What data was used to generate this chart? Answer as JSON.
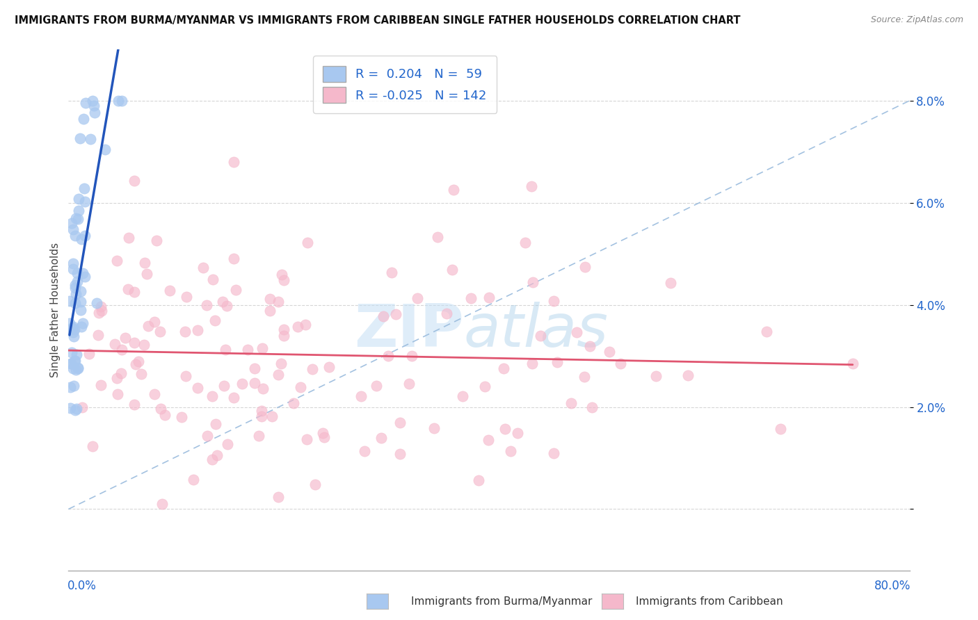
{
  "title": "IMMIGRANTS FROM BURMA/MYANMAR VS IMMIGRANTS FROM CARIBBEAN SINGLE FATHER HOUSEHOLDS CORRELATION CHART",
  "source": "Source: ZipAtlas.com",
  "ylabel": "Single Father Households",
  "xmin": 0.0,
  "xmax": 0.8,
  "ymin": -0.012,
  "ymax": 0.09,
  "blue_R": 0.204,
  "blue_N": 59,
  "pink_R": -0.025,
  "pink_N": 142,
  "blue_color": "#a8c8f0",
  "pink_color": "#f5b8cb",
  "blue_line_color": "#2255bb",
  "pink_line_color": "#e05570",
  "diag_color": "#99bbdd",
  "legend_label_blue": "Immigrants from Burma/Myanmar",
  "legend_label_pink": "Immigrants from Caribbean",
  "ytick_vals": [
    0.0,
    0.02,
    0.04,
    0.06,
    0.08
  ],
  "ytick_labels": [
    "",
    "2.0%",
    "4.0%",
    "6.0%",
    "8.0%"
  ],
  "grid_color": "#cccccc",
  "title_color": "#111111",
  "source_color": "#888888",
  "axis_label_color": "#2266cc",
  "legend_text_color": "#2266cc"
}
